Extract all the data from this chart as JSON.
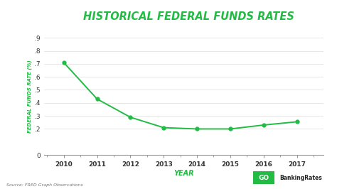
{
  "title": "HISTORICAL FEDERAL FUNDS RATES",
  "title_color": "#22bb44",
  "xlabel": "YEAR",
  "ylabel": "FEDERAL FUNDS RATE (%)",
  "xlabel_color": "#22bb44",
  "ylabel_color": "#22bb44",
  "years": [
    2010,
    2011,
    2012,
    2013,
    2014,
    2015,
    2016,
    2017
  ],
  "rates": [
    0.71,
    0.43,
    0.29,
    0.21,
    0.2,
    0.2,
    0.23,
    0.255
  ],
  "line_color": "#22bb44",
  "marker_color": "#22bb44",
  "ylim": [
    0,
    0.9
  ],
  "yticks": [
    0,
    0.2,
    0.3,
    0.4,
    0.5,
    0.6,
    0.7,
    0.8,
    0.9
  ],
  "ytick_labels": [
    "0",
    ".2",
    ".3",
    ".4",
    ".5",
    ".6",
    ".7",
    ".8",
    ".9"
  ],
  "background_color": "#ffffff",
  "source_text": "Source: FRED Graph Observations",
  "logo_text_go": "GO",
  "logo_text_banking": "BankingRates",
  "logo_bg": "#22bb44",
  "logo_text_color": "#ffffff"
}
